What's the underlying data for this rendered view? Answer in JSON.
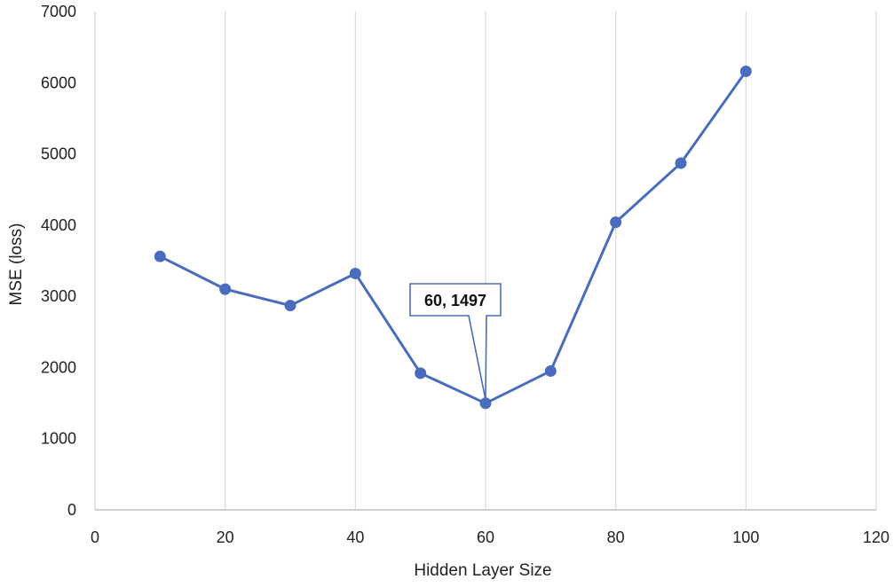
{
  "chart_data": {
    "type": "line",
    "title": "",
    "xlabel": "Hidden Layer Size",
    "ylabel": "MSE (loss)",
    "xlim": [
      0,
      120
    ],
    "ylim": [
      0,
      7000
    ],
    "xticks": [
      0,
      20,
      40,
      60,
      80,
      100,
      120
    ],
    "yticks": [
      0,
      1000,
      2000,
      3000,
      4000,
      5000,
      6000,
      7000
    ],
    "grid": "vertical",
    "series": [
      {
        "x": [
          10,
          20,
          30,
          40,
          50,
          60,
          70,
          80,
          90,
          100
        ],
        "y": [
          3560,
          3100,
          2870,
          3320,
          1920,
          1497,
          1950,
          4040,
          4870,
          6160
        ],
        "color": "#4a6cbf"
      }
    ],
    "annotations": [
      {
        "x": 60,
        "y": 1497,
        "text": "60, 1497"
      }
    ]
  }
}
